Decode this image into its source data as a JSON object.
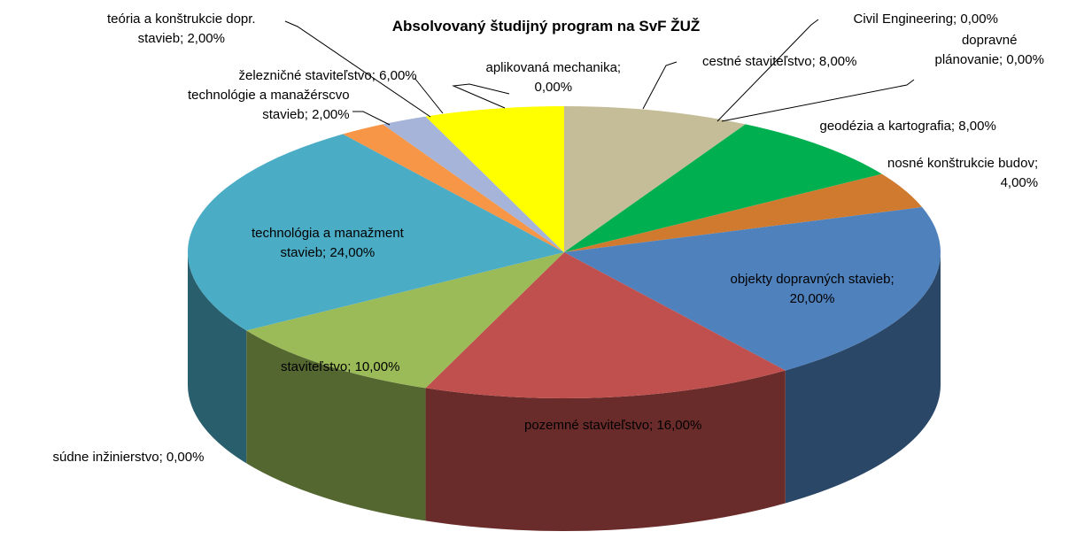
{
  "chart_data": {
    "type": "pie",
    "title": "Absolvovaný študijný program na SvF ŽUŽ",
    "values": [
      8,
      0,
      0,
      8,
      4,
      20,
      16,
      0,
      10,
      24,
      2,
      2,
      6,
      0
    ],
    "value_labels": [
      "cestné staviteľstvo; 8,00%",
      "Civil Engineering; 0,00%",
      "dopravné\nplánovanie; 0,00%",
      "geodézia a kartografia; 8,00%",
      "nosné konštrukcie budov;\n4,00%",
      "objekty dopravných stavieb;\n20,00%",
      "pozemné staviteľstvo; 16,00%",
      "súdne inžinierstvo; 0,00%",
      "staviteľstvo; 10,00%",
      "technológia a manažment\nstavieb; 24,00%",
      "technológie a manažérscvo\nstavieb; 2,00%",
      "teória a konštrukcie dopr.\nstavieb; 2,00%",
      "železničné staviteľstvo; 6,00%",
      "aplikovaná mechanika;\n0,00%"
    ],
    "colors": [
      "#c4bd97",
      "#8064a2",
      "#4bacc6",
      "#00b050",
      "#d07a30",
      "#4f81bd",
      "#c0504d",
      "#f79646",
      "#9bbb59",
      "#4bacc6",
      "#f79646",
      "#a5b4d8",
      "#ffff00",
      "#c0504d"
    ]
  }
}
